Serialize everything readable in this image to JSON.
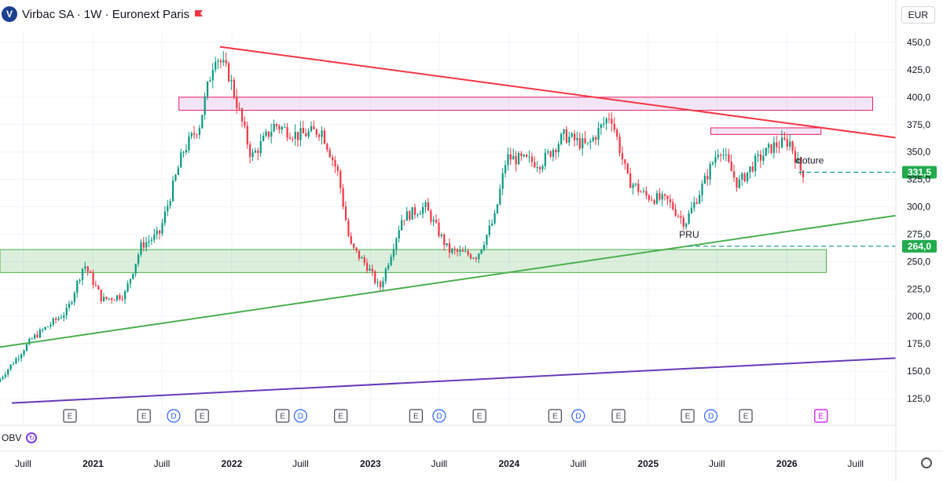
{
  "header": {
    "title": "Virbac SA · 1W · Euronext Paris",
    "logo_letter": "V",
    "flag_color": "#f23645"
  },
  "currency": "EUR",
  "indicator": {
    "label": "OBV"
  },
  "colors": {
    "up": "#089981",
    "down": "#f23645",
    "resistance": "#f23645",
    "support": "#4caf50",
    "long_support": "#673ab7",
    "pink_zone": "#e91e63",
    "green_zone": "#4caf50"
  },
  "chart_data": {
    "type": "candlestick",
    "y_axis": {
      "range": [
        125,
        450
      ],
      "ticks": [
        "450,0",
        "425,0",
        "400,0",
        "375,0",
        "350,0",
        "325,0",
        "300,0",
        "275,0",
        "250,0",
        "225,0",
        "200,0",
        "175,0",
        "150,0",
        "125,0"
      ]
    },
    "x_axis": {
      "range": [
        "2020-05-01",
        "2026-10-15"
      ],
      "ticks": [
        {
          "label": "Juill",
          "date": "2020-07-01",
          "bold": false
        },
        {
          "label": "2021",
          "date": "2021-01-01",
          "bold": true
        },
        {
          "label": "Juill",
          "date": "2021-07-01",
          "bold": false
        },
        {
          "label": "2022",
          "date": "2022-01-01",
          "bold": true
        },
        {
          "label": "Juill",
          "date": "2022-07-01",
          "bold": false
        },
        {
          "label": "2023",
          "date": "2023-01-01",
          "bold": true
        },
        {
          "label": "Juill",
          "date": "2023-07-01",
          "bold": false
        },
        {
          "label": "2024",
          "date": "2024-01-01",
          "bold": true
        },
        {
          "label": "Juill",
          "date": "2024-07-01",
          "bold": false
        },
        {
          "label": "2025",
          "date": "2025-01-01",
          "bold": true
        },
        {
          "label": "Juill",
          "date": "2025-07-01",
          "bold": false
        },
        {
          "label": "2026",
          "date": "2026-01-01",
          "bold": true
        },
        {
          "label": "Juill",
          "date": "2026-07-01",
          "bold": false
        }
      ]
    },
    "price_path": [
      [
        "2020-05-01",
        140
      ],
      [
        "2020-08-01",
        180
      ],
      [
        "2020-11-01",
        205
      ],
      [
        "2020-12-15",
        248
      ],
      [
        "2021-02-01",
        215
      ],
      [
        "2021-04-01",
        220
      ],
      [
        "2021-05-15",
        265
      ],
      [
        "2021-07-01",
        275
      ],
      [
        "2021-09-01",
        350
      ],
      [
        "2021-10-15",
        375
      ],
      [
        "2021-11-25",
        440
      ],
      [
        "2022-01-01",
        420
      ],
      [
        "2022-03-01",
        345
      ],
      [
        "2022-05-01",
        375
      ],
      [
        "2022-07-01",
        365
      ],
      [
        "2022-09-01",
        370
      ],
      [
        "2022-10-15",
        330
      ],
      [
        "2022-11-15",
        265
      ],
      [
        "2023-01-01",
        245
      ],
      [
        "2023-02-01",
        225
      ],
      [
        "2023-04-01",
        290
      ],
      [
        "2023-06-01",
        300
      ],
      [
        "2023-08-01",
        260
      ],
      [
        "2023-10-15",
        255
      ],
      [
        "2023-12-01",
        290
      ],
      [
        "2024-01-01",
        345
      ],
      [
        "2024-04-01",
        340
      ],
      [
        "2024-06-01",
        365
      ],
      [
        "2024-08-01",
        355
      ],
      [
        "2024-10-01",
        385
      ],
      [
        "2024-11-15",
        325
      ],
      [
        "2025-01-01",
        310
      ],
      [
        "2025-03-01",
        305
      ],
      [
        "2025-04-15",
        285
      ],
      [
        "2025-06-01",
        320
      ],
      [
        "2025-07-15",
        355
      ],
      [
        "2025-09-01",
        320
      ],
      [
        "2025-10-15",
        340
      ],
      [
        "2025-12-01",
        355
      ],
      [
        "2026-01-15",
        360
      ],
      [
        "2026-02-15",
        331.5
      ]
    ],
    "resistance_line": {
      "from": [
        "2021-12-01",
        446
      ],
      "to": [
        "2026-10-15",
        363
      ]
    },
    "support_line": {
      "from": [
        "2020-05-01",
        172
      ],
      "to": [
        "2026-10-15",
        292
      ]
    },
    "long_support_line": {
      "from": [
        "2020-06-01",
        121
      ],
      "to": [
        "2026-10-15",
        162
      ]
    },
    "zones": [
      {
        "name": "pink-zone-top",
        "from": "2021-08-15",
        "to": "2026-08-15",
        "y": [
          388,
          400
        ]
      },
      {
        "name": "pink-zone-small",
        "from": "2025-06-15",
        "to": "2026-04-01",
        "y": [
          366,
          372
        ]
      },
      {
        "name": "green-zone",
        "from": "2020-05-01",
        "to": "2026-04-15",
        "y": [
          240,
          261
        ]
      }
    ],
    "levels": [
      {
        "value": 331.5,
        "label": "331,5",
        "annotation": "cloture",
        "from": "2026-02-01",
        "annot_date": "2026-02-01"
      },
      {
        "value": 264.0,
        "label": "264,0",
        "annotation": "PRU",
        "from": "2025-04-15",
        "annot_date": "2025-04-01"
      }
    ],
    "events": [
      {
        "date": "2020-11-01",
        "type": "E"
      },
      {
        "date": "2021-05-15",
        "type": "E"
      },
      {
        "date": "2021-08-01",
        "type": "D"
      },
      {
        "date": "2021-10-15",
        "type": "E"
      },
      {
        "date": "2022-05-15",
        "type": "E"
      },
      {
        "date": "2022-07-01",
        "type": "D"
      },
      {
        "date": "2022-10-15",
        "type": "E"
      },
      {
        "date": "2023-05-01",
        "type": "E"
      },
      {
        "date": "2023-07-01",
        "type": "D"
      },
      {
        "date": "2023-10-15",
        "type": "E"
      },
      {
        "date": "2024-05-01",
        "type": "E"
      },
      {
        "date": "2024-07-01",
        "type": "D"
      },
      {
        "date": "2024-10-15",
        "type": "E"
      },
      {
        "date": "2025-04-15",
        "type": "E"
      },
      {
        "date": "2025-06-15",
        "type": "D"
      },
      {
        "date": "2025-09-15",
        "type": "E"
      },
      {
        "date": "2026-04-01",
        "type": "E",
        "future": true
      }
    ]
  }
}
